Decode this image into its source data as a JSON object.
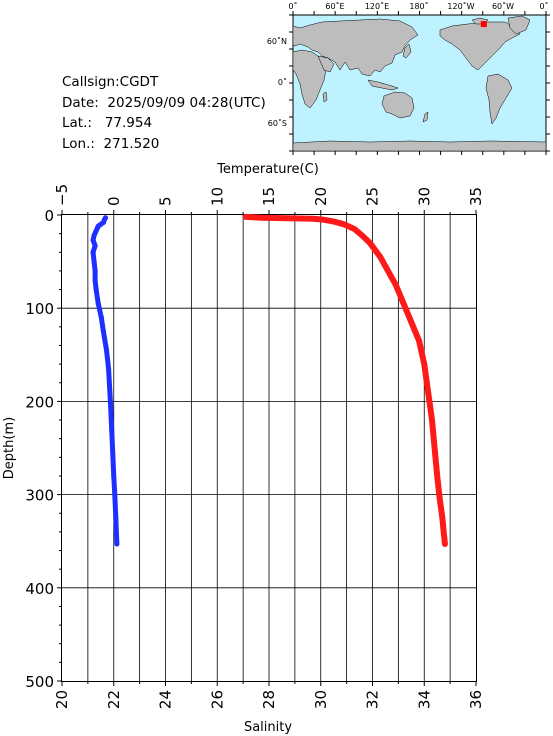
{
  "station": {
    "callsign": "Callsign:CGDT",
    "date_label": "Date:",
    "date": "2025/09/09 04:28(UTC)",
    "lat_label": "Lat.:",
    "lat": "77.954",
    "lon_label": "Lon.:",
    "lon": "271.520"
  },
  "map": {
    "lon_labels": [
      "0˚",
      "60˚E",
      "120˚E",
      "180˚",
      "120˚W",
      "60˚W",
      "0˚"
    ],
    "lat_labels": [
      "60˚N",
      "0˚",
      "60˚S"
    ],
    "ocean_color": "#bff2ff",
    "land_color": "#bdbdbd",
    "marker_color": "#ff0000",
    "marker_lon": 271.52,
    "marker_lat": 77.954
  },
  "chart_data": {
    "type": "line",
    "ylabel": "Depth(m)",
    "ylim": [
      500,
      0
    ],
    "y_ticks": [
      "0",
      "100",
      "200",
      "300",
      "400",
      "500"
    ],
    "grid": true,
    "x_top": {
      "label": "Temperature(C)",
      "lim": [
        -5,
        35
      ],
      "ticks": [
        "−5",
        "0",
        "5",
        "10",
        "15",
        "20",
        "25",
        "30",
        "35"
      ]
    },
    "x_bottom": {
      "label": "Salinity",
      "lim": [
        20,
        36
      ],
      "ticks": [
        "20",
        "22",
        "24",
        "26",
        "28",
        "30",
        "32",
        "34",
        "36"
      ]
    },
    "series": [
      {
        "axis": "top",
        "color": "#1f2fff",
        "x": [
          -0.8,
          -0.9,
          -1.0,
          -1.5,
          -1.7,
          -1.9,
          -2.0,
          -1.8,
          -2.0,
          -1.9,
          -1.8,
          -1.8,
          -1.7,
          -1.5,
          -1.2,
          -1.0,
          -0.7,
          -0.5,
          -0.4,
          -0.3,
          -0.2,
          -0.1,
          0.0,
          0.1,
          0.2,
          0.3
        ],
        "y": [
          3,
          5,
          8,
          12,
          17,
          22,
          27,
          33,
          40,
          50,
          60,
          70,
          80,
          95,
          110,
          125,
          145,
          165,
          185,
          205,
          230,
          255,
          280,
          300,
          325,
          353
        ]
      },
      {
        "axis": "bottom",
        "color": "#ff1a1a",
        "x": [
          27.1,
          27.7,
          29.7,
          30.1,
          30.5,
          30.9,
          31.3,
          31.6,
          31.9,
          32.3,
          32.6,
          32.9,
          33.2,
          33.5,
          33.8,
          34.0,
          34.15,
          34.3,
          34.4,
          34.5,
          34.6,
          34.7,
          34.75,
          34.8
        ],
        "y": [
          2,
          3,
          4,
          5,
          7,
          10,
          15,
          22,
          30,
          45,
          60,
          75,
          95,
          115,
          135,
          160,
          190,
          220,
          250,
          280,
          305,
          325,
          340,
          353
        ]
      }
    ]
  }
}
